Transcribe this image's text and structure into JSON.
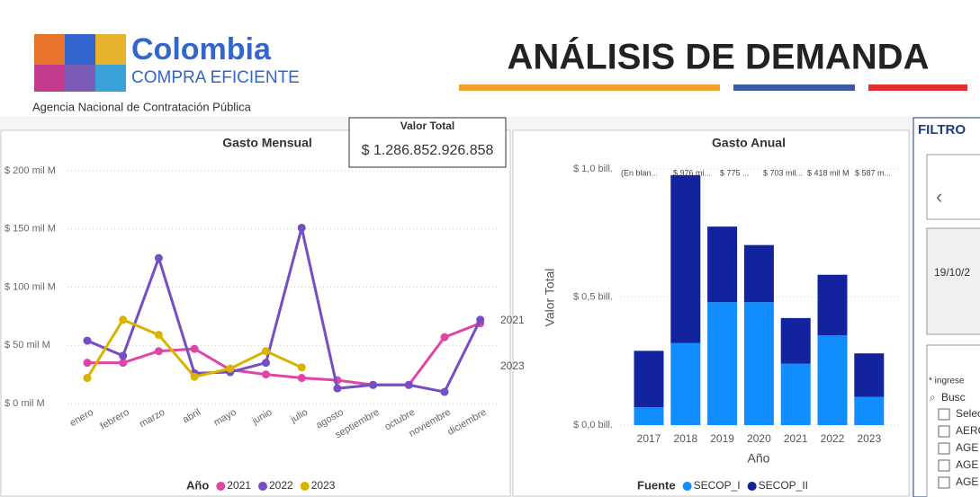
{
  "header": {
    "logo_name": "Colombia",
    "logo_sub": "COMPRA EFICIENTE",
    "agency": "Agencia Nacional de Contratación Pública",
    "title": "ANÁLISIS DE DEMANDA"
  },
  "card": {
    "label": "Valor Total",
    "value": "$ 1.286.852.926.858"
  },
  "filters": {
    "title": "FILTRO",
    "date": "19/10/2",
    "hint": "* ingrese",
    "search": "Busc",
    "items": [
      "Selec",
      "AERO",
      "AGE",
      "AGE",
      "AGE"
    ]
  },
  "chart_data": [
    {
      "type": "line",
      "title": "Gasto Mensual",
      "categories": [
        "enero",
        "febrero",
        "marzo",
        "abril",
        "mayo",
        "junio",
        "julio",
        "agosto",
        "septiembre",
        "octubre",
        "noviembre",
        "diciembre"
      ],
      "series": [
        {
          "name": "2021",
          "color": "#e044a7",
          "values": [
            35,
            35,
            45,
            47,
            29,
            25,
            22,
            20,
            16,
            16,
            57,
            69
          ]
        },
        {
          "name": "2022",
          "color": "#744ec2",
          "values": [
            54,
            41,
            125,
            26,
            27,
            35,
            151,
            13,
            16,
            16,
            10,
            72
          ]
        },
        {
          "name": "2023",
          "color": "#d9b300",
          "values": [
            22,
            72,
            59,
            23,
            30,
            45,
            31,
            null,
            null,
            null,
            null,
            null
          ]
        }
      ],
      "ylim": [
        0,
        200
      ],
      "yticks": [
        {
          "value": 0,
          "label": "$ 0 mil M"
        },
        {
          "value": 50,
          "label": "$ 50 mil M"
        },
        {
          "value": 100,
          "label": "$ 100 mil M"
        },
        {
          "value": 150,
          "label": "$ 150 mil M"
        },
        {
          "value": 200,
          "label": "$ 200 mil M"
        }
      ],
      "grid": true,
      "legend_title": "Año",
      "legend": "bottom"
    },
    {
      "type": "stacked_bar",
      "title": "Gasto Anual",
      "x_label": "Año",
      "y_label": "Valor Total",
      "categories": [
        "2017",
        "2018",
        "2019",
        "2020",
        "2021",
        "2022",
        "2023"
      ],
      "series": [
        {
          "name": "SECOP_I",
          "color": "#118dff",
          "values": [
            0.07,
            0.32,
            0.48,
            0.48,
            0.24,
            0.35,
            0.11
          ]
        },
        {
          "name": "SECOP_II",
          "color": "#12239e",
          "values": [
            0.22,
            0.656,
            0.295,
            0.223,
            0.178,
            0.237,
            0.17
          ]
        }
      ],
      "ylim": [
        0,
        1.0
      ],
      "yticks": [
        {
          "value": 0,
          "label": "$ 0,0 bill."
        },
        {
          "value": 0.5,
          "label": "$ 0,5 bill."
        },
        {
          "value": 1.0,
          "label": "$ 1,0 bill."
        }
      ],
      "grid": true,
      "legend_title": "Fuente",
      "legend": "bottom",
      "annotations": [
        "(En blan...",
        "$ 976 mi...",
        "$ 775 ...",
        "$ 703 mil...",
        "$ 418 mil M",
        "$ 587 m..."
      ]
    }
  ]
}
